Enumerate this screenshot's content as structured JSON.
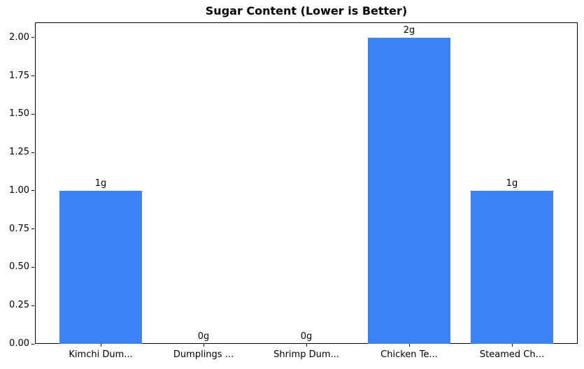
{
  "chart_data": {
    "type": "bar",
    "title": "Sugar Content (Lower is Better)",
    "categories": [
      "Kimchi Dum...",
      "Dumplings ...",
      "Shrimp Dum...",
      "Chicken Te...",
      "Steamed Ch..."
    ],
    "values": [
      1,
      0,
      0,
      2,
      1
    ],
    "bar_labels": [
      "1g",
      "0g",
      "0g",
      "2g",
      "1g"
    ],
    "xlabel": "",
    "ylabel": "",
    "yticks": [
      "0.00",
      "0.25",
      "0.50",
      "0.75",
      "1.00",
      "1.25",
      "1.50",
      "1.75",
      "2.00"
    ],
    "ylim": [
      0,
      2.1
    ],
    "grid": false,
    "legend_position": "none",
    "bar_color": "#3b82f6",
    "text_color": "#000000",
    "background_color": "#ffffff"
  }
}
